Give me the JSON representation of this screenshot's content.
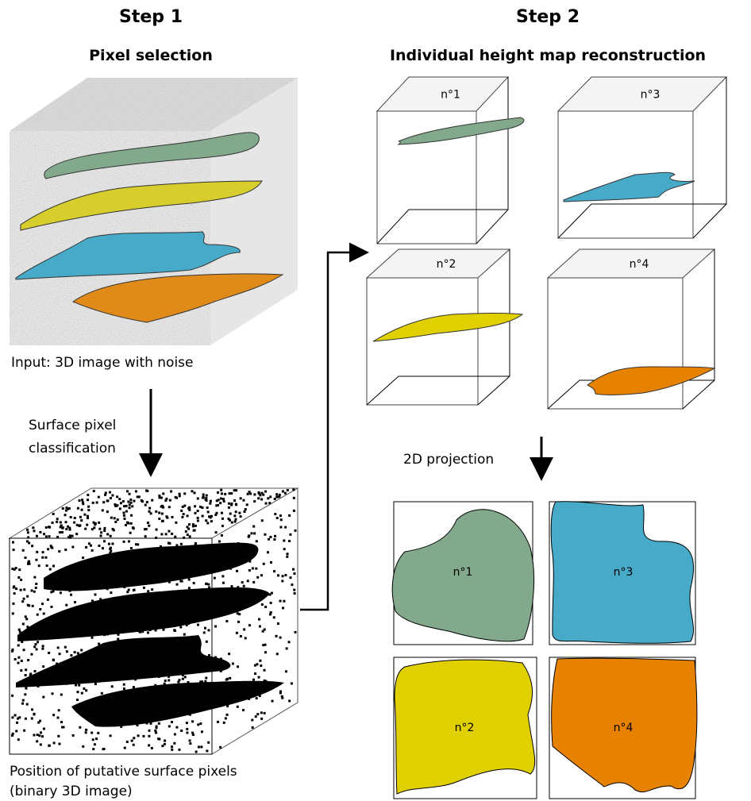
{
  "step1": {
    "title": "Step 1",
    "subtitle": "Pixel selection",
    "input_caption": "Input: 3D image with noise",
    "arrow_label": [
      "Surface pixel",
      "classification"
    ],
    "output_caption": [
      "Position of putative surface pixels",
      "(binary 3D image)"
    ]
  },
  "step2": {
    "title": "Step 2",
    "subtitle": "Individual height map reconstruction",
    "boxes": [
      "n°1",
      "n°3",
      "n°2",
      "n°4"
    ],
    "arrow_label": "2D projection",
    "projections": [
      "n°1",
      "n°3",
      "n°2",
      "n°4"
    ]
  }
}
